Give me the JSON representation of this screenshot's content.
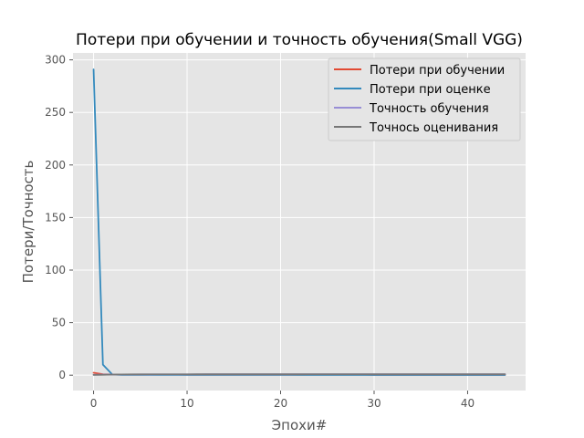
{
  "chart_data": {
    "type": "line",
    "title": "Потери при обучении и точность обучения(Small VGG)",
    "xlabel": "Эпохи#",
    "ylabel": "Потери/Точность",
    "xlim": [
      -2.2,
      46.2
    ],
    "ylim": [
      -14.6,
      306.6
    ],
    "xticks": [
      0,
      10,
      20,
      30,
      40
    ],
    "yticks": [
      0,
      50,
      100,
      150,
      200,
      250,
      300
    ],
    "grid": true,
    "legend_position": "top-right",
    "x": [
      0,
      1,
      2,
      3,
      4,
      5,
      6,
      7,
      8,
      9,
      10,
      11,
      12,
      13,
      14,
      15,
      16,
      17,
      18,
      19,
      20,
      21,
      22,
      23,
      24,
      25,
      26,
      27,
      28,
      29,
      30,
      31,
      32,
      33,
      34,
      35,
      36,
      37,
      38,
      39,
      40,
      41,
      42,
      43,
      44
    ],
    "series": [
      {
        "name": "Потери при обучении",
        "color": "#e24a33",
        "values": [
          2.3,
          0.9,
          0.7,
          0.6,
          0.55,
          0.5,
          0.5,
          0.48,
          0.45,
          0.45,
          0.44,
          0.43,
          0.42,
          0.42,
          0.41,
          0.4,
          0.4,
          0.39,
          0.39,
          0.38,
          0.38,
          0.37,
          0.37,
          0.37,
          0.36,
          0.36,
          0.36,
          0.35,
          0.35,
          0.35,
          0.34,
          0.34,
          0.34,
          0.33,
          0.33,
          0.33,
          0.33,
          0.32,
          0.32,
          0.32,
          0.32,
          0.31,
          0.31,
          0.31,
          0.31
        ]
      },
      {
        "name": "Потери при оценке",
        "color": "#348abd",
        "values": [
          291,
          10,
          0.7,
          0.3,
          0.3,
          0.3,
          0.3,
          0.3,
          0.3,
          0.3,
          0.3,
          0.3,
          0.3,
          0.3,
          0.3,
          0.3,
          0.3,
          0.3,
          0.3,
          0.3,
          0.3,
          0.3,
          0.3,
          0.3,
          0.3,
          0.3,
          0.3,
          0.3,
          0.3,
          0.3,
          0.3,
          0.3,
          0.3,
          0.3,
          0.3,
          0.3,
          0.3,
          0.3,
          0.3,
          0.3,
          0.3,
          0.3,
          0.3,
          0.3,
          0.3
        ]
      },
      {
        "name": "Точность обучения",
        "color": "#988ed5",
        "values": [
          0.35,
          0.55,
          0.65,
          0.7,
          0.72,
          0.75,
          0.77,
          0.78,
          0.8,
          0.81,
          0.82,
          0.83,
          0.84,
          0.85,
          0.85,
          0.86,
          0.86,
          0.87,
          0.87,
          0.88,
          0.88,
          0.88,
          0.89,
          0.89,
          0.89,
          0.9,
          0.9,
          0.9,
          0.9,
          0.9,
          0.91,
          0.91,
          0.91,
          0.91,
          0.92,
          0.92,
          0.92,
          0.92,
          0.92,
          0.93,
          0.93,
          0.93,
          0.93,
          0.93,
          0.93
        ]
      },
      {
        "name": "Точнось оценивания",
        "color": "#777777",
        "values": [
          0.3,
          0.4,
          0.6,
          0.7,
          0.75,
          0.77,
          0.78,
          0.8,
          0.81,
          0.82,
          0.83,
          0.84,
          0.84,
          0.85,
          0.85,
          0.86,
          0.86,
          0.87,
          0.87,
          0.87,
          0.88,
          0.88,
          0.88,
          0.89,
          0.89,
          0.89,
          0.89,
          0.9,
          0.9,
          0.9,
          0.9,
          0.9,
          0.91,
          0.91,
          0.91,
          0.91,
          0.91,
          0.91,
          0.92,
          0.92,
          0.92,
          0.92,
          0.92,
          0.92,
          0.92
        ]
      }
    ]
  }
}
